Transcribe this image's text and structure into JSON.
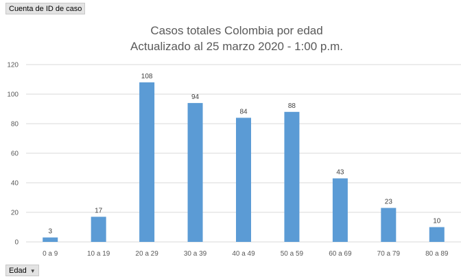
{
  "value_field": {
    "label": "Cuenta de ID de caso"
  },
  "axis_field": {
    "label": "Edad",
    "icon": "dropdown-arrow-icon"
  },
  "chart_data": {
    "type": "bar",
    "title": "Casos totales Colombia por edad",
    "subtitle": "Actualizado al 25 marzo 2020 - 1:00 p.m.",
    "categories": [
      "0 a 9",
      "10 a 19",
      "20 a 29",
      "30 a 39",
      "40 a 49",
      "50 a 59",
      "60 a 69",
      "70 a 79",
      "80 a 89"
    ],
    "values": [
      3,
      17,
      108,
      94,
      84,
      88,
      43,
      23,
      10
    ],
    "ylim": [
      0,
      120
    ],
    "yticks": [
      0,
      20,
      40,
      60,
      80,
      100,
      120
    ],
    "grid": true,
    "legend": "none",
    "bar_color": "#5b9bd5",
    "grid_color": "#d9d9d9"
  }
}
